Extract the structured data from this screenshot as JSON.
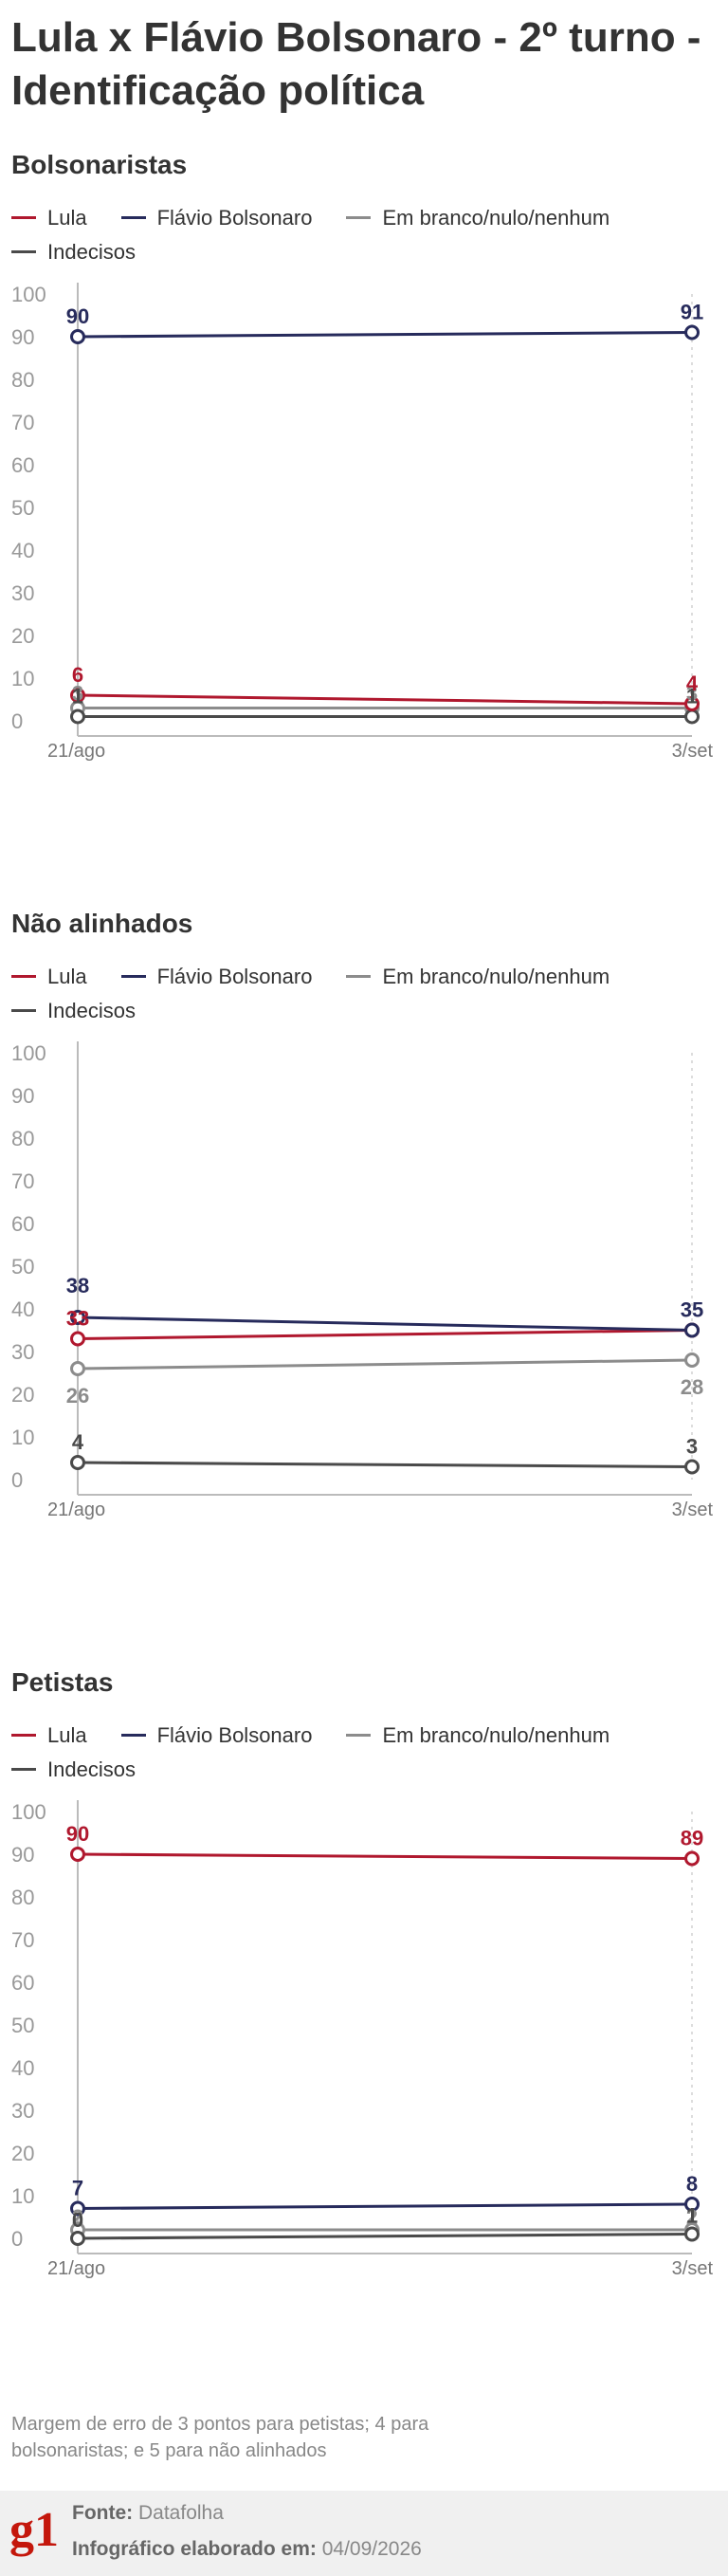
{
  "title": "Lula x Flávio Bolsonaro - 2º turno - Identificação política",
  "legend": [
    {
      "label": "Lula",
      "color": "#b0182e"
    },
    {
      "label": "Flávio Bolsonaro",
      "color": "#272b5c"
    },
    {
      "label": "Em branco/nulo/nenhum",
      "color": "#8c8c8c"
    },
    {
      "label": "Indecisos",
      "color": "#4a4a4a"
    }
  ],
  "chart_data": [
    {
      "type": "line",
      "title": "Bolsonaristas",
      "x": [
        "21/ago",
        "3/set"
      ],
      "ylim": [
        0,
        100
      ],
      "yticks": [
        "0",
        "10",
        "20",
        "30",
        "40",
        "50",
        "60",
        "70",
        "80",
        "90",
        "100"
      ],
      "series": [
        {
          "name": "Lula",
          "color": "#b0182e",
          "values": [
            6,
            4
          ],
          "labels": [
            "6",
            "4"
          ]
        },
        {
          "name": "Flávio Bolsonaro",
          "color": "#272b5c",
          "values": [
            90,
            91
          ],
          "labels": [
            "90",
            "91"
          ]
        },
        {
          "name": "Em branco/nulo/nenhum",
          "color": "#8c8c8c",
          "values": [
            3,
            3
          ],
          "labels": [
            "3",
            "3"
          ]
        },
        {
          "name": "Indecisos",
          "color": "#4a4a4a",
          "values": [
            1,
            1
          ],
          "labels": [
            "1",
            "1"
          ]
        }
      ]
    },
    {
      "type": "line",
      "title": "Não alinhados",
      "x": [
        "21/ago",
        "3/set"
      ],
      "ylim": [
        0,
        100
      ],
      "yticks": [
        "0",
        "10",
        "20",
        "30",
        "40",
        "50",
        "60",
        "70",
        "80",
        "90",
        "100"
      ],
      "series": [
        {
          "name": "Lula",
          "color": "#b0182e",
          "values": [
            33,
            35
          ],
          "labels": [
            "33",
            ""
          ]
        },
        {
          "name": "Flávio Bolsonaro",
          "color": "#272b5c",
          "values": [
            38,
            35
          ],
          "labels": [
            "38",
            "35"
          ]
        },
        {
          "name": "Em branco/nulo/nenhum",
          "color": "#8c8c8c",
          "values": [
            26,
            28
          ],
          "labels": [
            "26",
            "28"
          ]
        },
        {
          "name": "Indecisos",
          "color": "#4a4a4a",
          "values": [
            4,
            3
          ],
          "labels": [
            "4",
            "3"
          ]
        }
      ]
    },
    {
      "type": "line",
      "title": "Petistas",
      "x": [
        "21/ago",
        "3/set"
      ],
      "ylim": [
        0,
        100
      ],
      "yticks": [
        "0",
        "10",
        "20",
        "30",
        "40",
        "50",
        "60",
        "70",
        "80",
        "90",
        "100"
      ],
      "series": [
        {
          "name": "Lula",
          "color": "#b0182e",
          "values": [
            90,
            89
          ],
          "labels": [
            "90",
            "89"
          ]
        },
        {
          "name": "Flávio Bolsonaro",
          "color": "#272b5c",
          "values": [
            7,
            8
          ],
          "labels": [
            "7",
            "8"
          ]
        },
        {
          "name": "Em branco/nulo/nenhum",
          "color": "#8c8c8c",
          "values": [
            2,
            2
          ],
          "labels": [
            "2",
            "2"
          ]
        },
        {
          "name": "Indecisos",
          "color": "#4a4a4a",
          "values": [
            0,
            1
          ],
          "labels": [
            "0",
            "1"
          ]
        }
      ]
    }
  ],
  "footnote": "Margem de erro de 3 pontos para petistas; 4 para bolsonaristas; e 5 para não alinhados",
  "footer": {
    "logo": "g1",
    "source_label": "Fonte:",
    "source_value": "Datafolha",
    "made_label": "Infográfico elaborado em:",
    "made_value": "04/09/2026"
  }
}
